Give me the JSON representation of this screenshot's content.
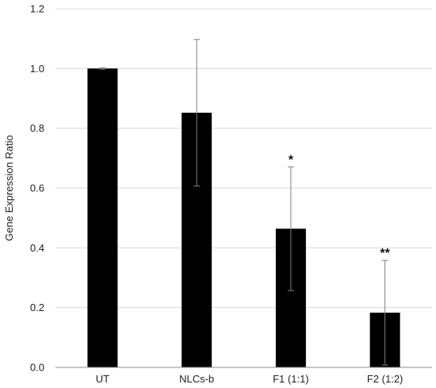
{
  "chart_data": {
    "type": "bar",
    "title": "",
    "xlabel": "",
    "ylabel": "Gene Expression Ratio",
    "ylim": [
      0,
      1.2
    ],
    "y_ticks": [
      "0.0",
      "0.2",
      "0.4",
      "0.6",
      "0.8",
      "1.0",
      "1.2"
    ],
    "y_tick_values": [
      0,
      0.2,
      0.4,
      0.6,
      0.8,
      1.0,
      1.2
    ],
    "grid": true,
    "categories": [
      "UT",
      "NLCs-b",
      "F1 (1:1)",
      "F2 (1:2)"
    ],
    "values": [
      1.0,
      0.852,
      0.464,
      0.183
    ],
    "error": [
      0.002,
      0.245,
      0.207,
      0.175
    ],
    "annotations": [
      "",
      "",
      "*",
      "**"
    ],
    "bar_color": "#000000",
    "error_color": "#7f7f7f",
    "grid_color": "#d9d9d9"
  }
}
